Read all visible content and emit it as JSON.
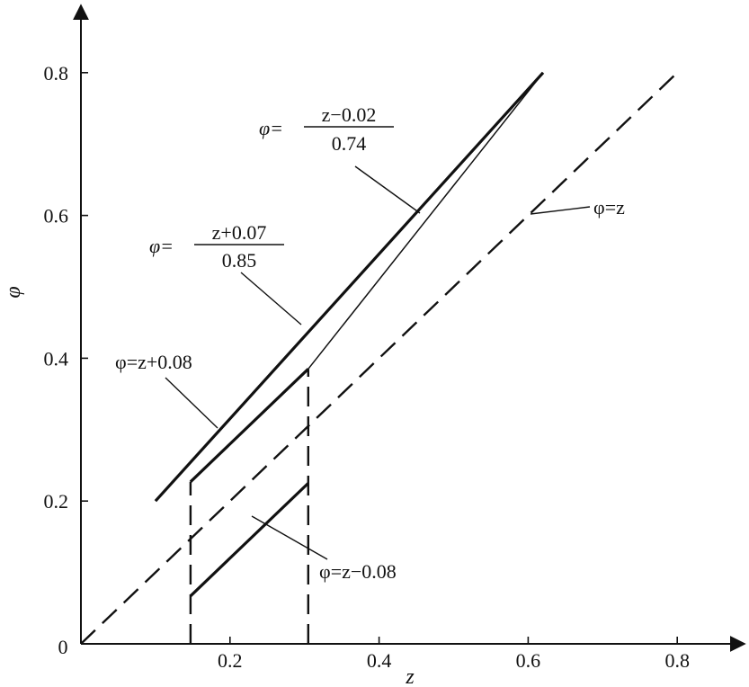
{
  "chart_data": {
    "type": "line",
    "title": "",
    "xlabel": "z",
    "ylabel": "φ",
    "xlim": [
      0,
      0.9
    ],
    "ylim": [
      0,
      0.88
    ],
    "origin_label": "0",
    "x_ticks": [
      {
        "value": 0.2,
        "label": "0.2"
      },
      {
        "value": 0.4,
        "label": "0.4"
      },
      {
        "value": 0.6,
        "label": "0.6"
      },
      {
        "value": 0.8,
        "label": "0.8"
      }
    ],
    "y_ticks": [
      {
        "value": 0.2,
        "label": "0.2"
      },
      {
        "value": 0.4,
        "label": "0.4"
      },
      {
        "value": 0.6,
        "label": "0.6"
      },
      {
        "value": 0.8,
        "label": "0.8"
      }
    ],
    "grid": false,
    "legend": "none",
    "series": [
      {
        "key": "upper",
        "style": "thick",
        "x": [
          0.1,
          0.62
        ],
        "y": [
          0.2,
          0.8
        ]
      },
      {
        "key": "slope074",
        "style": "thin",
        "x": [
          0.305,
          0.62
        ],
        "y": [
          0.385,
          0.8
        ]
      },
      {
        "key": "plus008",
        "style": "thick",
        "x": [
          0.147,
          0.305
        ],
        "y": [
          0.227,
          0.385
        ]
      },
      {
        "key": "minus008",
        "style": "thick",
        "x": [
          0.147,
          0.305
        ],
        "y": [
          0.067,
          0.225
        ]
      },
      {
        "key": "identity",
        "style": "dashed",
        "x": [
          0,
          0.8
        ],
        "y": [
          0,
          0.8
        ]
      },
      {
        "key": "drop_left",
        "style": "dashed",
        "x": [
          0.147,
          0.147
        ],
        "y": [
          0,
          0.227
        ]
      },
      {
        "key": "drop_right",
        "style": "dashed",
        "x": [
          0.305,
          0.305
        ],
        "y": [
          0,
          0.385
        ]
      }
    ],
    "annotations": [
      {
        "key": "ann_upper",
        "lhs": "φ=",
        "numerator": "z+0.07",
        "denominator": "0.85"
      },
      {
        "key": "ann_slope074",
        "lhs": "φ=",
        "numerator": "z−0.02",
        "denominator": "0.74"
      },
      {
        "key": "ann_identity",
        "text": "φ=z"
      },
      {
        "key": "ann_plus008",
        "text": "φ=z+0.08"
      },
      {
        "key": "ann_minus008",
        "text": "φ=z−0.08"
      }
    ]
  }
}
